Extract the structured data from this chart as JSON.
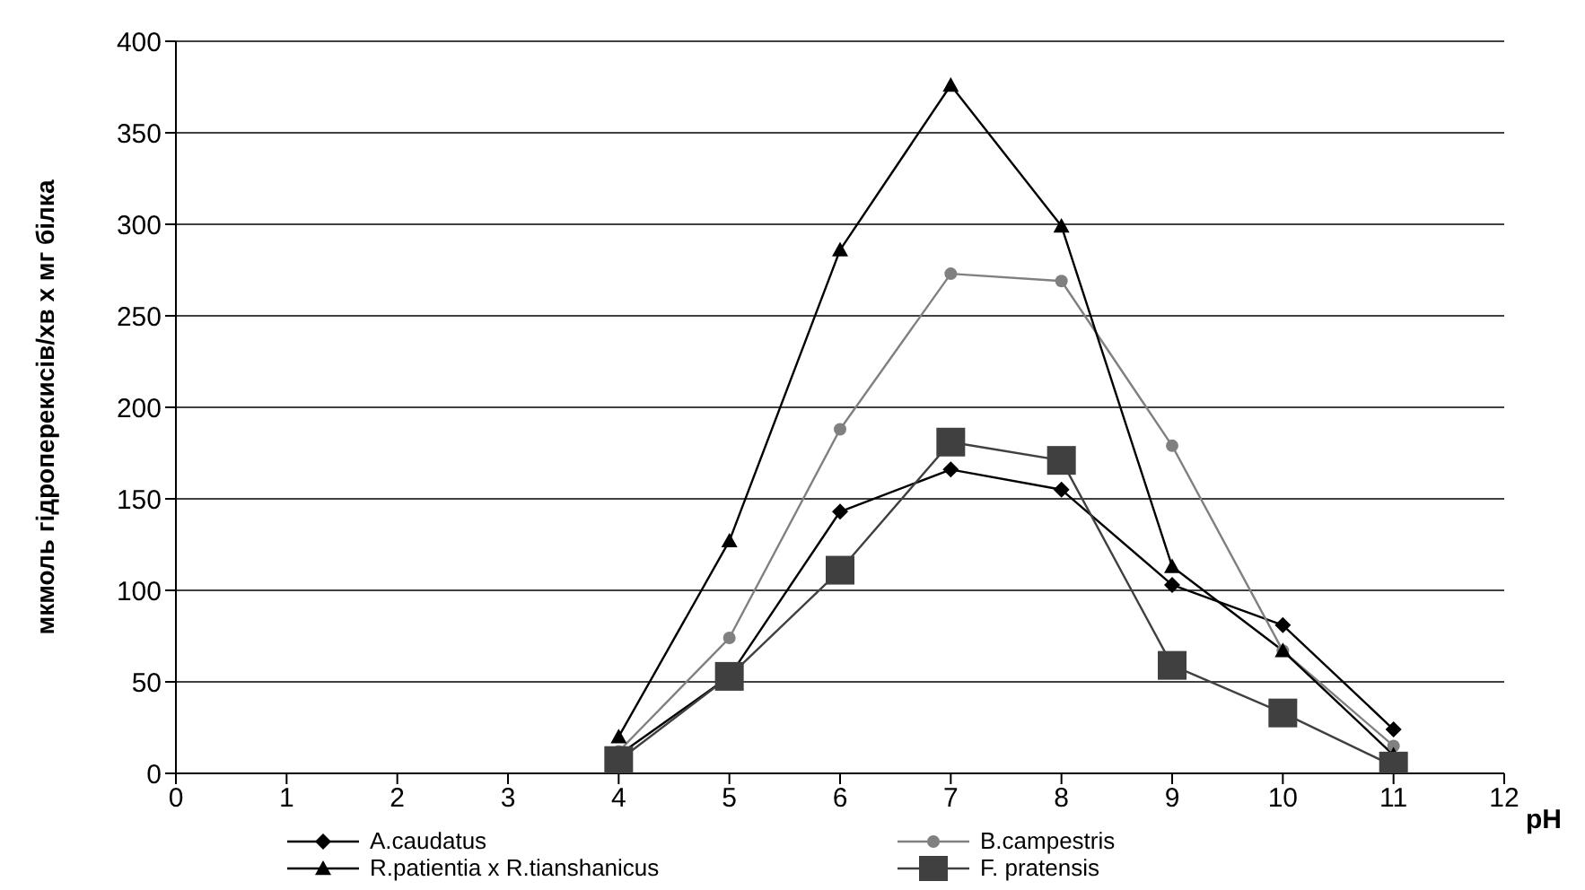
{
  "chart_data": {
    "type": "line",
    "ylabel": "мкмоль гідроперекисів/хв х мг білка",
    "xlabel": "pH",
    "x": [
      4,
      5,
      6,
      7,
      8,
      9,
      10,
      11
    ],
    "xlim": [
      0,
      12
    ],
    "xticks": [
      0,
      1,
      2,
      3,
      4,
      5,
      6,
      7,
      8,
      9,
      10,
      11,
      12
    ],
    "ylim": [
      0,
      400
    ],
    "yticks": [
      0,
      50,
      100,
      150,
      200,
      250,
      300,
      350,
      400
    ],
    "grid": "y",
    "legend": "bottom",
    "series": [
      {
        "name": "A.caudatus",
        "color": "#000000",
        "marker": "diamond",
        "values": [
          10,
          53,
          143,
          166,
          155,
          103,
          81,
          24
        ]
      },
      {
        "name": "B.campestris",
        "color": "#808080",
        "marker": "circle",
        "values": [
          12,
          74,
          188,
          273,
          269,
          179,
          67,
          15
        ]
      },
      {
        "name": "R.patientia x R.tianshanicus",
        "color": "#000000",
        "marker": "triangle",
        "values": [
          20,
          127,
          286,
          376,
          299,
          113,
          67,
          10
        ]
      },
      {
        "name": "F. pratensis",
        "color": "#404040",
        "marker": "square",
        "values": [
          7,
          53,
          111,
          181,
          171,
          59,
          33,
          4
        ]
      }
    ]
  }
}
